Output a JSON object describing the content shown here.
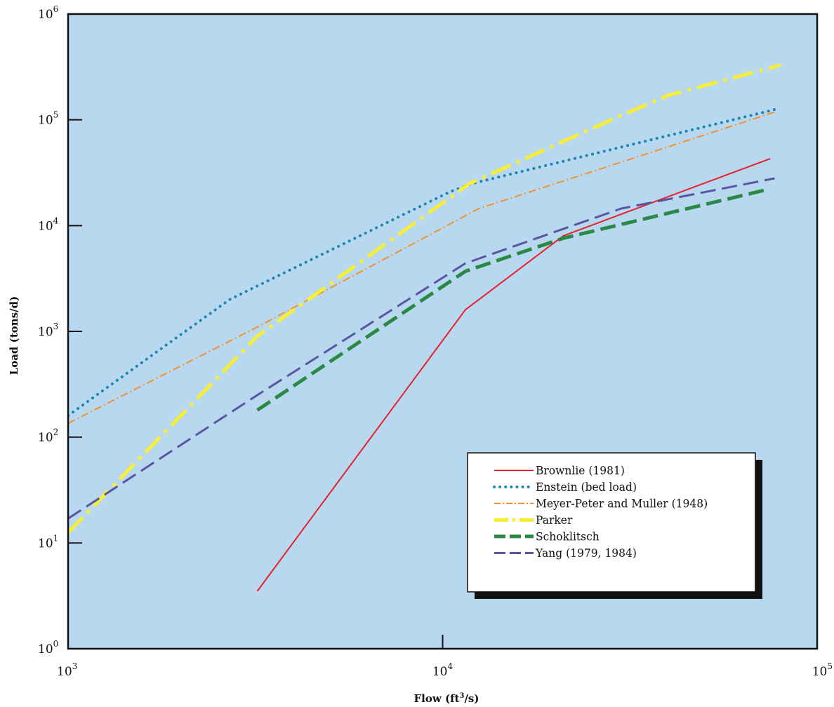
{
  "chart_data": {
    "type": "line",
    "title": "",
    "xlabel": "Flow (ft³/s)",
    "xlabel_base": "Flow (ft",
    "xlabel_sup": "3",
    "xlabel_tail": "/s)",
    "ylabel": "Load (tons/d)",
    "x_scale": "log",
    "y_scale": "log",
    "xlim": [
      1000,
      100000
    ],
    "ylim": [
      1,
      1000000
    ],
    "x_ticks": [
      {
        "value": 1000,
        "base": "10",
        "exp": "3"
      },
      {
        "value": 10000,
        "base": "10",
        "exp": "4"
      },
      {
        "value": 100000,
        "base": "10",
        "exp": "5"
      }
    ],
    "y_ticks": [
      {
        "value": 1,
        "base": "10",
        "exp": "0"
      },
      {
        "value": 10,
        "base": "10",
        "exp": "1"
      },
      {
        "value": 100,
        "base": "10",
        "exp": "2"
      },
      {
        "value": 1000,
        "base": "10",
        "exp": "3"
      },
      {
        "value": 10000,
        "base": "10",
        "exp": "4"
      },
      {
        "value": 100000,
        "base": "10",
        "exp": "5"
      },
      {
        "value": 1000000,
        "base": "10",
        "exp": "6"
      }
    ],
    "grid": false,
    "background": "#b8d8f0",
    "legend_position": "bottom-right",
    "series": [
      {
        "name": "Brownlie (1981)",
        "color": "#e8202a",
        "style": "solid",
        "width": 2,
        "points": [
          [
            3200,
            3.5
          ],
          [
            11500,
            1600
          ],
          [
            21000,
            8000
          ],
          [
            75000,
            43000
          ]
        ]
      },
      {
        "name": "Enstein (bed load)",
        "color": "#1b86b3",
        "style": "dotted",
        "width": 4,
        "points": [
          [
            1000,
            160
          ],
          [
            2700,
            2000
          ],
          [
            10500,
            21000
          ],
          [
            12000,
            25000
          ],
          [
            77000,
            125000
          ]
        ]
      },
      {
        "name": "Meyer-Peter and Muller (1948)",
        "color": "#f2922e",
        "style": "dashdot-thin",
        "width": 2,
        "points": [
          [
            1000,
            135
          ],
          [
            3200,
            1100
          ],
          [
            12500,
            14500
          ],
          [
            78000,
            120000
          ]
        ]
      },
      {
        "name": "Parker",
        "color": "#f8ee36",
        "style": "dashdot-thick",
        "width": 5,
        "points": [
          [
            1000,
            12.5
          ],
          [
            3200,
            900
          ],
          [
            11800,
            25000
          ],
          [
            30000,
            110000
          ],
          [
            40000,
            170000
          ],
          [
            80000,
            330000
          ]
        ]
      },
      {
        "name": "Schoklitsch",
        "color": "#2a8a45",
        "style": "dashed-thick",
        "width": 5,
        "points": [
          [
            3200,
            180
          ],
          [
            11500,
            3700
          ],
          [
            21000,
            7600
          ],
          [
            74000,
            22000
          ]
        ]
      },
      {
        "name": "Yang (1979, 1984)",
        "color": "#5a55a0",
        "style": "dashed",
        "width": 3,
        "points": [
          [
            1000,
            17
          ],
          [
            3200,
            250
          ],
          [
            11500,
            4400
          ],
          [
            30000,
            14500
          ],
          [
            77000,
            28000
          ]
        ]
      }
    ]
  }
}
